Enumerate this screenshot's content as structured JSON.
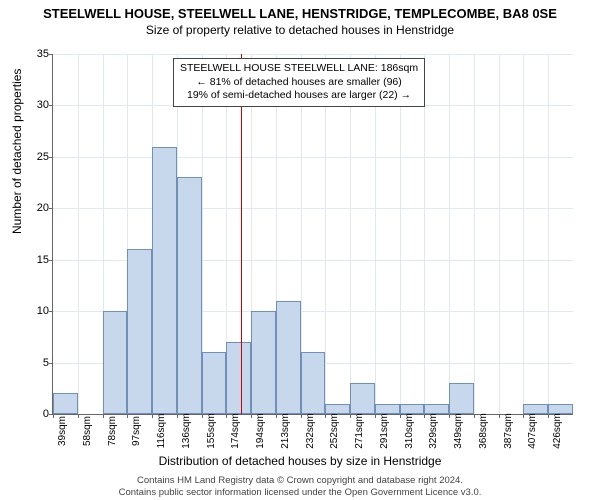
{
  "title_main": "STEELWELL HOUSE, STEELWELL LANE, HENSTRIDGE, TEMPLECOMBE, BA8 0SE",
  "title_sub": "Size of property relative to detached houses in Henstridge",
  "y_axis_label": "Number of detached properties",
  "x_axis_label": "Distribution of detached houses by size in Henstridge",
  "annotation": {
    "line1": "STEELWELL HOUSE STEELWELL LANE: 186sqm",
    "line2": "← 81% of detached houses are smaller (96)",
    "line3": "19% of semi-detached houses are larger (22) →"
  },
  "footer": {
    "line1": "Contains HM Land Registry data © Crown copyright and database right 2024.",
    "line2": "Contains public sector information licensed under the Open Government Licence v3.0."
  },
  "chart": {
    "type": "histogram",
    "ylim": [
      0,
      35
    ],
    "ytick_step": 5,
    "background_color": "#ffffff",
    "grid_color": "#e0e8f0",
    "axis_color": "#666666",
    "bar_fill": "#c8d8ec",
    "bar_border": "#7090b8",
    "reference_color": "#d00000",
    "reference_x_idx": 7.6,
    "x_labels": [
      "39sqm",
      "58sqm",
      "78sqm",
      "97sqm",
      "116sqm",
      "136sqm",
      "155sqm",
      "174sqm",
      "194sqm",
      "213sqm",
      "232sqm",
      "252sqm",
      "271sqm",
      "291sqm",
      "310sqm",
      "329sqm",
      "349sqm",
      "368sqm",
      "387sqm",
      "407sqm",
      "426sqm"
    ],
    "values": [
      2,
      0,
      10,
      16,
      26,
      23,
      6,
      7,
      10,
      11,
      6,
      1,
      3,
      1,
      1,
      1,
      3,
      0,
      0,
      1,
      1
    ]
  }
}
